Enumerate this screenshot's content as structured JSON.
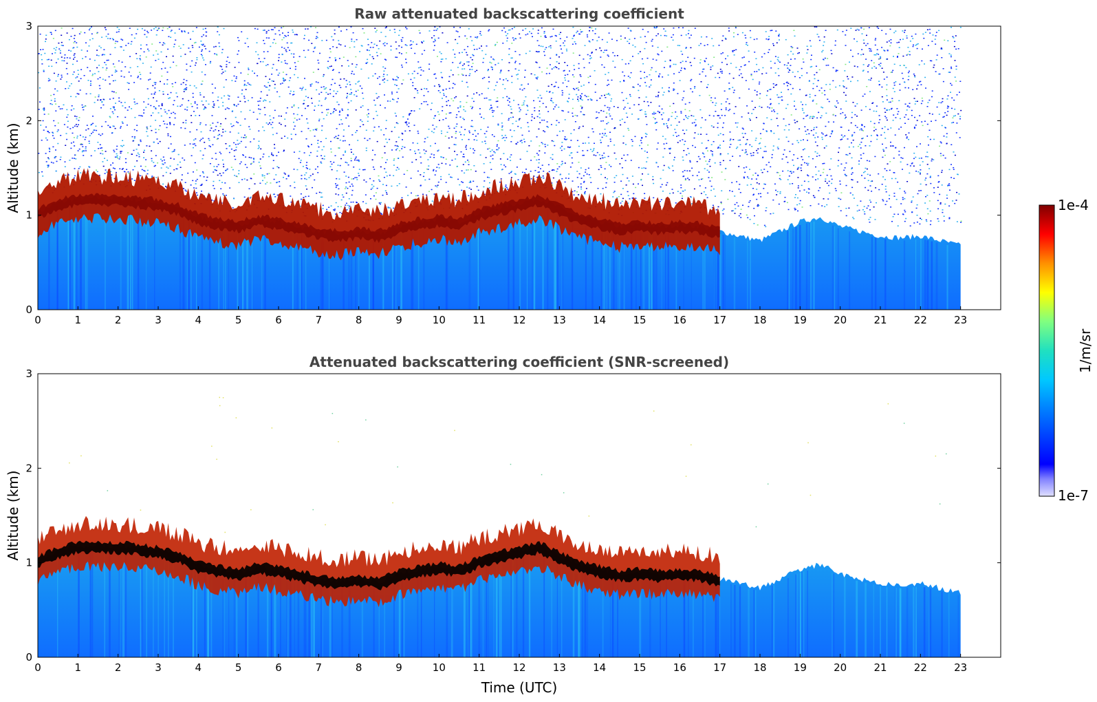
{
  "chart_data": [
    {
      "type": "heatmap",
      "title": "Raw attenuated backscattering coefficient",
      "xlabel": "",
      "ylabel": "Altitude (km)",
      "xlim": [
        0,
        24
      ],
      "ylim": [
        0,
        3
      ],
      "xticks": [
        "0",
        "1",
        "2",
        "3",
        "4",
        "5",
        "6",
        "7",
        "8",
        "9",
        "10",
        "11",
        "12",
        "13",
        "14",
        "15",
        "16",
        "17",
        "18",
        "19",
        "20",
        "21",
        "22",
        "23"
      ],
      "yticks": [
        "0",
        "1",
        "2",
        "3"
      ],
      "data_extent_hours": [
        0,
        23
      ],
      "boundary_layer_top_km": {
        "x": [
          0,
          0.5,
          1,
          1.5,
          2,
          2.5,
          3,
          3.5,
          4,
          4.5,
          5,
          5.5,
          6,
          6.5,
          7,
          7.5,
          8,
          8.5,
          9,
          9.5,
          10,
          10.5,
          11,
          11.5,
          12,
          12.5,
          13,
          13.5,
          14,
          14.5,
          15,
          15.5,
          16,
          16.5,
          17,
          17.5,
          18,
          18.5,
          19,
          19.5,
          20,
          20.5,
          21,
          21.5,
          22,
          22.5,
          23
        ],
        "y": [
          1.15,
          1.25,
          1.3,
          1.3,
          1.3,
          1.28,
          1.25,
          1.2,
          1.1,
          1.05,
          1.02,
          1.08,
          1.05,
          1.0,
          0.95,
          0.92,
          0.95,
          0.92,
          1.0,
          1.05,
          1.08,
          1.05,
          1.15,
          1.2,
          1.25,
          1.3,
          1.2,
          1.1,
          1.05,
          1.0,
          1.02,
          1.0,
          1.02,
          1.0,
          0.95,
          0.9,
          0.85,
          0.95,
          1.05,
          1.1,
          1.0,
          0.95,
          0.9,
          0.88,
          0.9,
          0.85,
          0.8
        ]
      },
      "strong_layer_end_hours": 17,
      "colorbar": {
        "label": "1/m/sr",
        "min_label": "1e-7",
        "max_label": "1e-4",
        "scale": "log",
        "colormap": "jet"
      }
    },
    {
      "type": "heatmap",
      "title": "Attenuated backscattering coefficient (SNR-screened)",
      "xlabel": "Time (UTC)",
      "ylabel": "Altitude (km)",
      "xlim": [
        0,
        24
      ],
      "ylim": [
        0,
        3
      ],
      "xticks": [
        "0",
        "1",
        "2",
        "3",
        "4",
        "5",
        "6",
        "7",
        "8",
        "9",
        "10",
        "11",
        "12",
        "13",
        "14",
        "15",
        "16",
        "17",
        "18",
        "19",
        "20",
        "21",
        "22",
        "23"
      ],
      "yticks": [
        "0",
        "1",
        "2",
        "3"
      ],
      "data_extent_hours": [
        0,
        23
      ],
      "screened": true,
      "colorbar": {
        "label": "1/m/sr",
        "min_label": "1e-7",
        "max_label": "1e-4",
        "scale": "log",
        "colormap": "jet"
      }
    }
  ],
  "colors": {
    "saturated": "#000000",
    "background": "#ffffff"
  }
}
